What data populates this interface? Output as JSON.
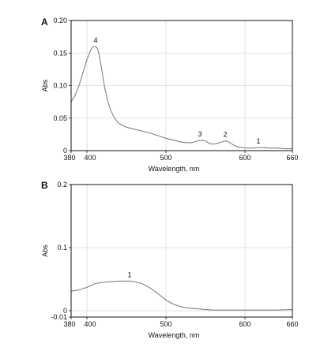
{
  "chart_data": [
    {
      "type": "line",
      "panel_label": "A",
      "xlabel": "Wavelength, nm",
      "ylabel": "Abs",
      "xlim": [
        380,
        660
      ],
      "ylim": [
        0,
        0.2
      ],
      "xticks": [
        {
          "value": 380,
          "label": "380"
        },
        {
          "value": 400,
          "label": "400"
        },
        {
          "value": 500,
          "label": "500"
        },
        {
          "value": 600,
          "label": "600"
        },
        {
          "value": 660,
          "label": "660"
        }
      ],
      "yticks": [
        {
          "value": 0,
          "label": "0"
        },
        {
          "value": 0.05,
          "label": "0.05"
        },
        {
          "value": 0.1,
          "label": "0.10"
        },
        {
          "value": 0.15,
          "label": "0.15"
        },
        {
          "value": 0.2,
          "label": "0.20"
        }
      ],
      "grid": true,
      "line_color": "#808080",
      "series": [
        {
          "x": [
            380,
            385,
            390,
            395,
            400,
            405,
            408,
            411,
            413,
            415,
            418,
            422,
            426,
            430,
            435,
            440,
            450,
            460,
            470,
            480,
            490,
            500,
            510,
            520,
            530,
            535,
            540,
            545,
            550,
            555,
            560,
            565,
            570,
            575,
            580,
            585,
            590,
            600,
            610,
            620,
            630,
            640,
            650,
            660
          ],
          "y": [
            0.075,
            0.085,
            0.1,
            0.12,
            0.14,
            0.155,
            0.16,
            0.16,
            0.158,
            0.15,
            0.13,
            0.1,
            0.078,
            0.062,
            0.05,
            0.042,
            0.036,
            0.033,
            0.03,
            0.027,
            0.023,
            0.019,
            0.016,
            0.013,
            0.012,
            0.013,
            0.015,
            0.016,
            0.015,
            0.011,
            0.01,
            0.011,
            0.013,
            0.015,
            0.013,
            0.009,
            0.006,
            0.004,
            0.004,
            0.005,
            0.004,
            0.004,
            0.003,
            0.003
          ]
        }
      ],
      "annotations": [
        {
          "text": "4",
          "x": 411,
          "y": 0.16
        },
        {
          "text": "3",
          "x": 543,
          "y": 0.016
        },
        {
          "text": "2",
          "x": 575,
          "y": 0.015
        },
        {
          "text": "1",
          "x": 617,
          "y": 0.005
        }
      ]
    },
    {
      "type": "line",
      "panel_label": "B",
      "xlabel": "Wavelength, nm",
      "ylabel": "Abs",
      "xlim": [
        380,
        660
      ],
      "ylim": [
        -0.01,
        0.2
      ],
      "xticks": [
        {
          "value": 380,
          "label": "380"
        },
        {
          "value": 400,
          "label": "400"
        },
        {
          "value": 500,
          "label": "500"
        },
        {
          "value": 600,
          "label": "600"
        },
        {
          "value": 660,
          "label": "660"
        }
      ],
      "yticks": [
        {
          "value": -0.01,
          "label": "-0.01"
        },
        {
          "value": 0,
          "label": "0"
        },
        {
          "value": 0.1,
          "label": "0.1"
        },
        {
          "value": 0.2,
          "label": "0.2"
        }
      ],
      "grid": true,
      "line_color": "#808080",
      "series": [
        {
          "x": [
            380,
            390,
            400,
            410,
            420,
            430,
            440,
            450,
            455,
            460,
            470,
            480,
            490,
            500,
            510,
            520,
            530,
            540,
            550,
            560,
            580,
            600,
            620,
            640,
            660
          ],
          "y": [
            0.031,
            0.033,
            0.037,
            0.043,
            0.045,
            0.046,
            0.047,
            0.047,
            0.047,
            0.046,
            0.043,
            0.036,
            0.027,
            0.017,
            0.01,
            0.006,
            0.004,
            0.003,
            0.002,
            0.001,
            0.001,
            0.001,
            0.001,
            0.001,
            0.002
          ]
        }
      ],
      "annotations": [
        {
          "text": "1",
          "x": 454,
          "y": 0.047
        }
      ]
    }
  ]
}
